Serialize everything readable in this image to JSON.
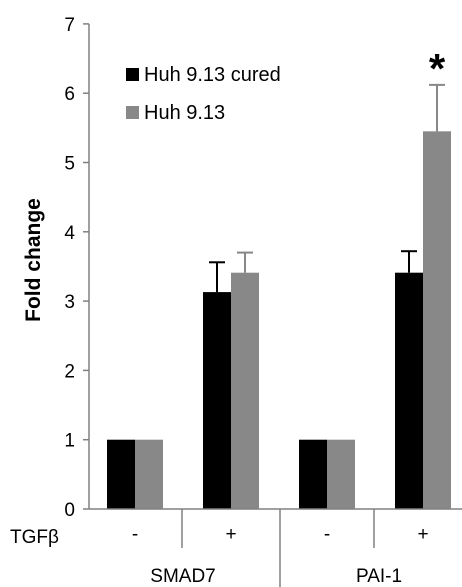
{
  "chart_data": {
    "type": "bar",
    "ylabel": "Fold change",
    "ylim": [
      0,
      7
    ],
    "yticks": [
      0,
      1,
      2,
      3,
      4,
      5,
      6,
      7
    ],
    "grid": false,
    "legend_position": "top-left",
    "row_label": "TGFβ",
    "groups": [
      {
        "name": "SMAD7",
        "conditions": [
          "-",
          "+"
        ]
      },
      {
        "name": "PAI-1",
        "conditions": [
          "-",
          "+"
        ]
      }
    ],
    "categories": [
      "SMAD7 -",
      "SMAD7 +",
      "PAI-1 -",
      "PAI-1 +"
    ],
    "series": [
      {
        "name": "Huh 9.13 cured",
        "color": "#000000",
        "values": [
          1.0,
          3.13,
          1.0,
          3.41
        ],
        "errors": [
          0.0,
          0.43,
          0.0,
          0.31
        ]
      },
      {
        "name": "Huh 9.13",
        "color": "#888888",
        "values": [
          1.0,
          3.41,
          1.0,
          5.45
        ],
        "errors": [
          0.0,
          0.29,
          0.0,
          0.67
        ]
      }
    ],
    "annotations": [
      {
        "text": "*",
        "category": "PAI-1 +",
        "series": "Huh 9.13"
      }
    ]
  }
}
